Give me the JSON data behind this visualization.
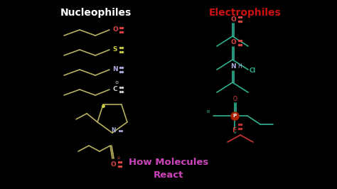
{
  "background_color": "#000000",
  "title_left": "Nucleophiles",
  "title_left_color": "#ffffff",
  "title_right": "Electrophiles",
  "title_right_color": "#cc1111",
  "subtitle": "How Molecules\nReact",
  "subtitle_color": "#cc44bb",
  "nuc_color": "#b8b060",
  "elec_color": "#30b090",
  "o_col": "#dd4444",
  "n_col": "#aaaadd",
  "s_col": "#cccc44",
  "c_col": "#cccccc",
  "cl_col": "#30b090",
  "p_col": "#aa2200",
  "f_col": "#cc3333",
  "figsize": [
    4.74,
    2.66
  ],
  "dpi": 100
}
